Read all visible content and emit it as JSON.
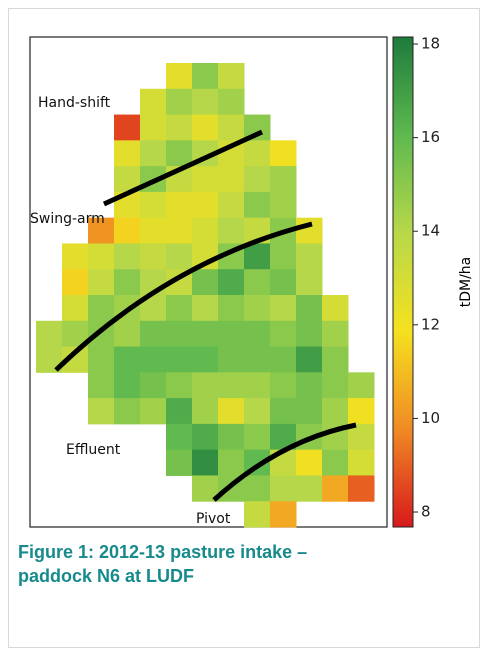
{
  "chart_data": {
    "type": "heatmap",
    "values": [
      [
        null,
        null,
        null,
        null,
        null,
        12.5,
        15,
        13.5,
        null,
        null,
        null,
        null,
        null
      ],
      [
        null,
        null,
        null,
        null,
        13,
        14.5,
        14,
        14.5,
        null,
        null,
        null,
        null,
        null
      ],
      [
        null,
        null,
        null,
        8.5,
        13,
        13.5,
        12.5,
        13.5,
        15,
        null,
        null,
        null,
        null
      ],
      [
        null,
        null,
        null,
        12.5,
        14,
        15,
        14,
        13,
        13.5,
        12,
        null,
        null,
        null
      ],
      [
        null,
        null,
        null,
        13.5,
        15,
        13.5,
        13,
        13,
        14,
        14.5,
        null,
        null,
        null
      ],
      [
        null,
        null,
        null,
        12.5,
        13,
        12.5,
        12.5,
        13.5,
        15,
        14.5,
        null,
        null,
        null
      ],
      [
        null,
        null,
        10,
        11.5,
        12.5,
        12.5,
        13,
        14,
        13.5,
        15,
        12.5,
        null,
        null
      ],
      [
        null,
        12.5,
        13,
        14,
        13.5,
        14,
        13,
        15,
        17,
        15,
        14,
        null,
        null
      ],
      [
        null,
        11.5,
        13.5,
        15,
        14,
        13.5,
        15.5,
        16.5,
        15,
        15.5,
        14,
        null,
        null
      ],
      [
        null,
        13,
        15,
        14.5,
        14,
        15,
        14,
        15,
        14.5,
        14,
        15.5,
        13,
        null
      ],
      [
        14,
        14.5,
        15,
        14.5,
        15.5,
        15.5,
        15.5,
        15.5,
        15.5,
        15,
        15.5,
        14.5,
        null
      ],
      [
        14,
        13.5,
        15,
        16,
        16,
        16,
        16,
        15.5,
        15.5,
        15.5,
        17,
        15,
        null
      ],
      [
        null,
        null,
        15,
        16,
        15.5,
        15,
        14.5,
        14.5,
        14.5,
        15,
        15.5,
        15,
        14.5
      ],
      [
        null,
        null,
        14,
        15,
        14.5,
        16.5,
        14.5,
        12.5,
        14,
        15.5,
        15.5,
        14.5,
        12
      ],
      [
        null,
        null,
        null,
        null,
        null,
        16,
        16.5,
        15.5,
        15,
        16.5,
        15,
        14.5,
        13.5
      ],
      [
        null,
        null,
        null,
        null,
        null,
        15.5,
        17.5,
        15,
        16,
        13.5,
        12,
        15,
        13
      ],
      [
        null,
        null,
        null,
        null,
        null,
        null,
        14.5,
        15,
        15,
        14,
        14,
        10.5,
        9
      ],
      [
        null,
        null,
        null,
        null,
        null,
        null,
        null,
        null,
        13.5,
        10.5,
        null,
        null,
        null
      ]
    ],
    "colormap": [
      "#d7191c",
      "#f08a24",
      "#f5e11f",
      "#b8d84a",
      "#5eb94f",
      "#1e7b3b"
    ],
    "zlim": [
      7.68,
      18.15
    ],
    "zticks": [
      8,
      10,
      12,
      14,
      16,
      18
    ],
    "colorbar_label": "tDM/ha",
    "annotations": [
      "Hand-shift",
      "Swing-arm",
      "Effluent",
      "Pivot"
    ]
  },
  "caption": "Figure 1: 2012-13 pasture intake – paddock N6 at LUDF"
}
